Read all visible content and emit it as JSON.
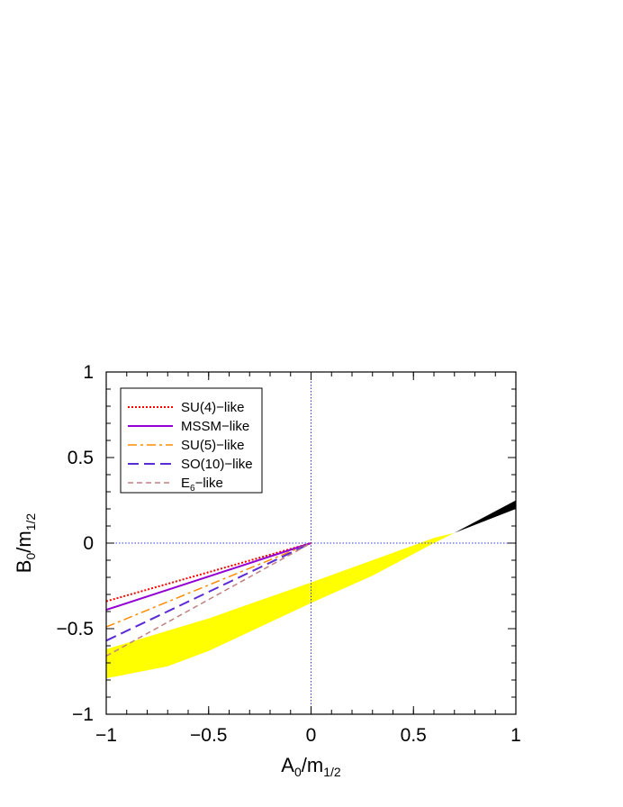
{
  "chart_data": {
    "type": "line",
    "xlabel": {
      "main": "A",
      "sub1": "0",
      "mid": "/m",
      "sub2": "1/2"
    },
    "ylabel": {
      "main": "B",
      "sub1": "0",
      "mid": "/m",
      "sub2": "1/2"
    },
    "xlim": [
      -1,
      1
    ],
    "ylim": [
      -1,
      1
    ],
    "xticks": [
      {
        "value": -1,
        "label": "−1"
      },
      {
        "value": -0.5,
        "label": "−0.5"
      },
      {
        "value": 0,
        "label": "0"
      },
      {
        "value": 0.5,
        "label": "0.5"
      },
      {
        "value": 1,
        "label": "1"
      }
    ],
    "yticks": [
      {
        "value": 1,
        "label": "1"
      },
      {
        "value": 0.5,
        "label": "0.5"
      },
      {
        "value": 0,
        "label": "0"
      },
      {
        "value": -0.5,
        "label": "−0.5"
      },
      {
        "value": -1,
        "label": "−1"
      }
    ],
    "reference_lines": {
      "x": 0,
      "y": 0,
      "color": "#3333ff",
      "style": "dotted"
    },
    "bands": [
      {
        "color": "#ffff00",
        "upper": [
          [
            -1,
            -0.62
          ],
          [
            -0.5,
            -0.44
          ],
          [
            0,
            -0.23
          ],
          [
            0.3,
            -0.1
          ],
          [
            0.6,
            0.03
          ],
          [
            0.7,
            0.06
          ]
        ],
        "lower": [
          [
            -1,
            -0.79
          ],
          [
            -0.7,
            -0.72
          ],
          [
            -0.5,
            -0.63
          ],
          [
            0,
            -0.35
          ],
          [
            0.3,
            -0.19
          ],
          [
            0.6,
            0.0
          ],
          [
            0.7,
            0.06
          ]
        ]
      },
      {
        "color": "#000000",
        "upper": [
          [
            0.7,
            0.06
          ],
          [
            1,
            0.25
          ]
        ],
        "lower": [
          [
            0.7,
            0.06
          ],
          [
            1,
            0.2
          ]
        ]
      }
    ],
    "series": [
      {
        "name": "SU(4)−like",
        "color": "#ff0000",
        "dash": "2,2",
        "width": 2,
        "x": [
          -1,
          0
        ],
        "y": [
          -0.34,
          0.0
        ]
      },
      {
        "name": "MSSM−like",
        "color": "#9400d3",
        "dash": "",
        "width": 2,
        "x": [
          -1,
          0
        ],
        "y": [
          -0.39,
          0.0
        ]
      },
      {
        "name": "SU(5)−like",
        "color": "#ff8c00",
        "dash": "10,4,3,4",
        "width": 1.5,
        "x": [
          -1,
          0
        ],
        "y": [
          -0.49,
          0.0
        ]
      },
      {
        "name": "SO(10)−like",
        "color": "#5b2bd6",
        "dash": "12,6",
        "width": 2,
        "x": [
          -1,
          0
        ],
        "y": [
          -0.57,
          0.0
        ]
      },
      {
        "name": "E6−like",
        "name_parts": {
          "main": "E",
          "sub": "6",
          "rest": "−like"
        },
        "color": "#c08080",
        "dash": "6,4",
        "width": 1.5,
        "x": [
          -1,
          0
        ],
        "y": [
          -0.66,
          0.0
        ]
      }
    ],
    "legend": {
      "placement": "top-left",
      "boxed": true
    }
  }
}
